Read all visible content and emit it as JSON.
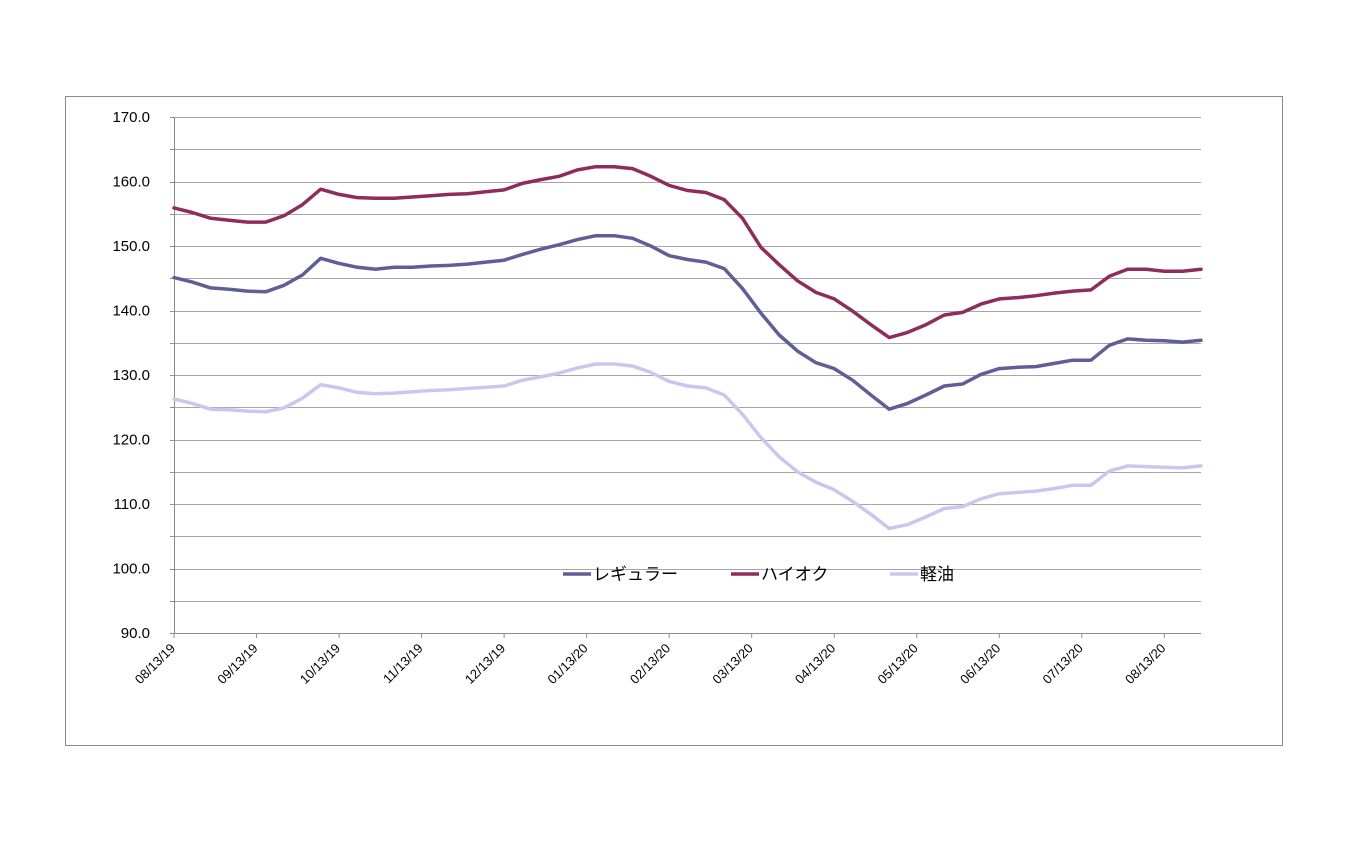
{
  "chart_data": {
    "type": "line",
    "title": "",
    "xlabel": "",
    "ylabel": "",
    "ylim": [
      90,
      170
    ],
    "yticks": [
      "170.0",
      "160.0",
      "150.0",
      "140.0",
      "130.0",
      "120.0",
      "110.0",
      "100.0",
      "90.0"
    ],
    "ytick_values": [
      170,
      160,
      150,
      140,
      130,
      120,
      110,
      100,
      90
    ],
    "grid": true,
    "legend_position": "inside-bottom-center",
    "xtick_labels": [
      "08/13/19",
      "09/13/19",
      "10/13/19",
      "11/13/19",
      "12/13/19",
      "01/13/20",
      "02/13/20",
      "03/13/20",
      "04/13/20",
      "05/13/20",
      "06/13/20",
      "07/13/20",
      "08/13/20"
    ],
    "xtick_indices": [
      0,
      4.5,
      9,
      13.5,
      18,
      22.5,
      27,
      31.5,
      36,
      40.5,
      45,
      49.5,
      54
    ],
    "n_points": 57,
    "series": [
      {
        "name": "レギュラー",
        "color": "#5e5f96",
        "values": [
          145.1,
          144.4,
          143.5,
          143.3,
          143.0,
          142.9,
          143.9,
          145.5,
          148.1,
          147.3,
          146.7,
          146.4,
          146.7,
          146.7,
          146.9,
          147.0,
          147.2,
          147.5,
          147.8,
          148.7,
          149.5,
          150.2,
          151.0,
          151.6,
          151.6,
          151.2,
          150.0,
          148.5,
          147.9,
          147.5,
          146.5,
          143.4,
          139.6,
          136.2,
          133.7,
          131.9,
          131.0,
          129.2,
          126.9,
          124.7,
          125.6,
          126.9,
          128.3,
          128.6,
          130.1,
          131.0,
          131.2,
          131.3,
          131.8,
          132.3,
          132.3,
          134.6,
          135.6,
          135.4,
          135.3,
          135.1,
          135.4
        ]
      },
      {
        "name": "ハイオク",
        "color": "#8e2c5c",
        "values": [
          155.9,
          155.2,
          154.3,
          154.0,
          153.7,
          153.7,
          154.7,
          156.4,
          158.8,
          158.0,
          157.5,
          157.4,
          157.4,
          157.6,
          157.8,
          158.0,
          158.1,
          158.4,
          158.7,
          159.7,
          160.3,
          160.8,
          161.8,
          162.3,
          162.3,
          162.0,
          160.8,
          159.4,
          158.6,
          158.3,
          157.2,
          154.3,
          149.8,
          147.1,
          144.6,
          142.8,
          141.8,
          139.9,
          137.8,
          135.8,
          136.6,
          137.8,
          139.3,
          139.7,
          141.0,
          141.8,
          142.0,
          142.3,
          142.7,
          143.0,
          143.2,
          145.3,
          146.4,
          146.4,
          146.1,
          146.1,
          146.4
        ]
      },
      {
        "name": "軽油",
        "color": "#c8c8ef",
        "values": [
          126.3,
          125.6,
          124.7,
          124.6,
          124.4,
          124.3,
          124.9,
          126.4,
          128.5,
          128.0,
          127.3,
          127.1,
          127.2,
          127.4,
          127.6,
          127.7,
          127.9,
          128.1,
          128.3,
          129.2,
          129.7,
          130.3,
          131.1,
          131.7,
          131.7,
          131.4,
          130.4,
          129.0,
          128.3,
          128.0,
          126.9,
          123.9,
          120.3,
          117.3,
          115.0,
          113.4,
          112.2,
          110.4,
          108.4,
          106.2,
          106.8,
          108.0,
          109.3,
          109.6,
          110.8,
          111.6,
          111.8,
          112.0,
          112.4,
          112.9,
          112.9,
          115.1,
          115.9,
          115.8,
          115.7,
          115.6,
          115.9
        ]
      }
    ]
  }
}
